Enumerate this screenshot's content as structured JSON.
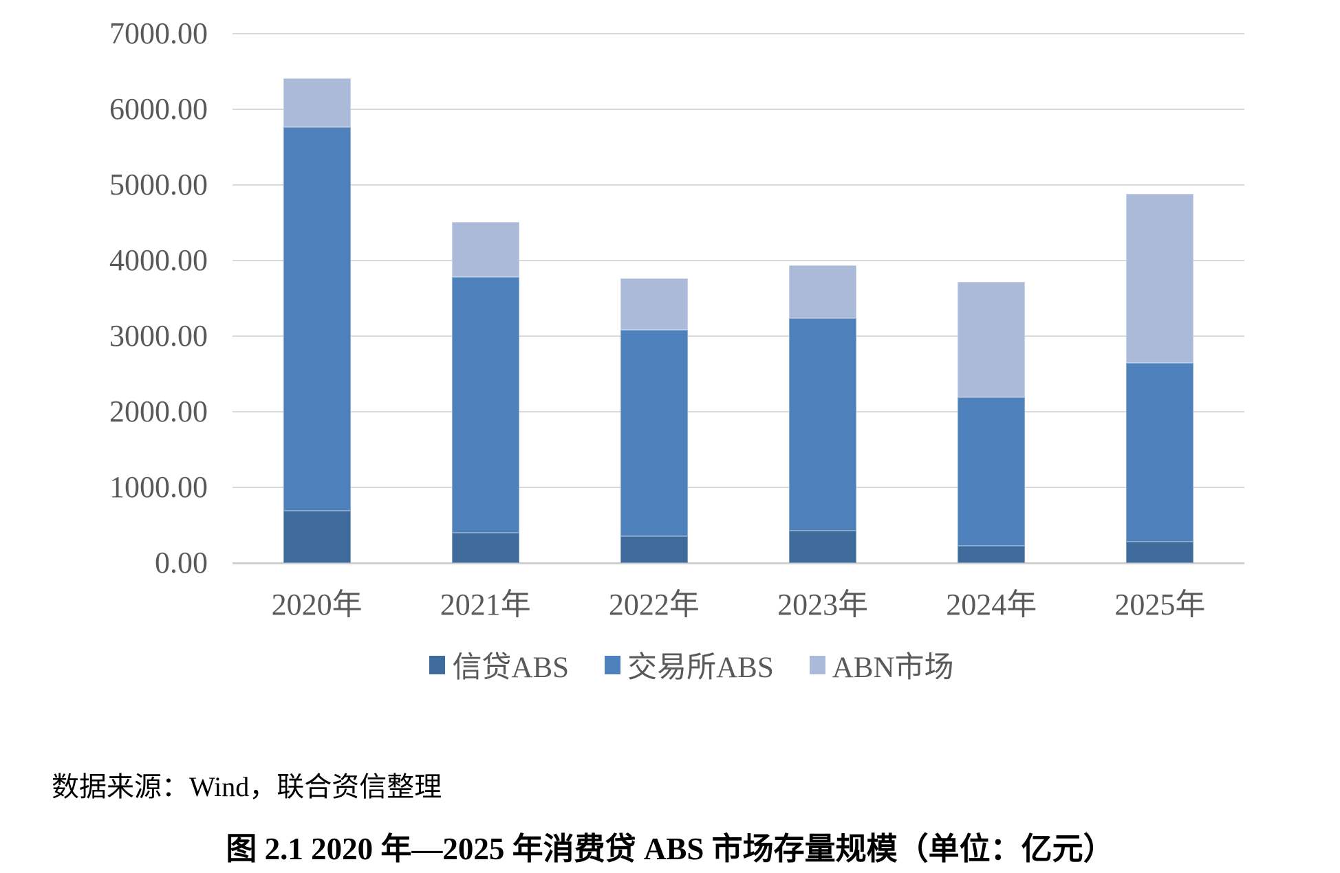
{
  "chart_data": {
    "type": "bar",
    "stacked": true,
    "title": "",
    "xlabel": "",
    "ylabel": "",
    "categories": [
      "2020年",
      "2021年",
      "2022年",
      "2023年",
      "2024年",
      "2025年"
    ],
    "series": [
      {
        "name": "信贷ABS",
        "color": "#3E6A9C",
        "values": [
          690,
          400,
          355,
          430,
          230,
          280
        ]
      },
      {
        "name": "交易所ABS",
        "color": "#4E80BC",
        "values": [
          5070,
          3380,
          2730,
          2810,
          1960,
          2370
        ]
      },
      {
        "name": "ABN市场",
        "color": "#ABBAD8",
        "values": [
          650,
          730,
          680,
          700,
          1530,
          2230
        ]
      }
    ],
    "totals": [
      6410,
      4510,
      3765,
      3940,
      3720,
      4880
    ],
    "ylim": [
      0,
      7000
    ],
    "ytick_step": 1000,
    "yticks": [
      "0.00",
      "1000.00",
      "2000.00",
      "3000.00",
      "4000.00",
      "5000.00",
      "6000.00",
      "7000.00"
    ],
    "grid": "horizontal",
    "gridline_color": "#D9D9D9",
    "axis_text_color": "#595959",
    "legend_position": "bottom",
    "unit": "亿元"
  },
  "source_note": "数据来源：Wind，联合资信整理",
  "caption": "图 2.1  2020 年—2025 年消费贷 ABS 市场存量规模（单位：亿元）"
}
